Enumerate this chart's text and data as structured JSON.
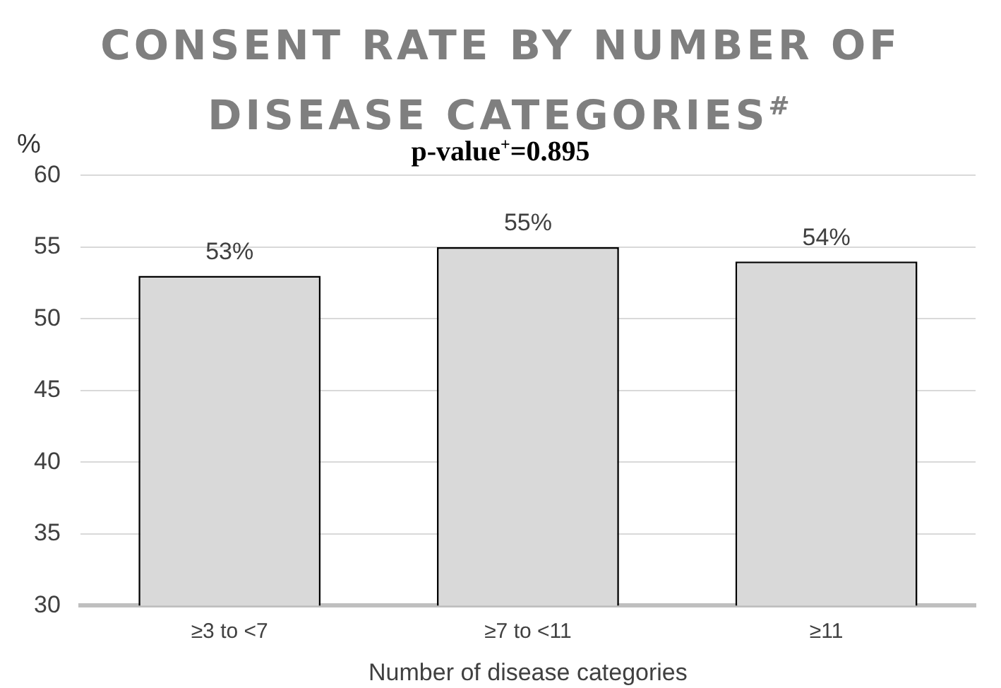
{
  "chart_data": {
    "type": "bar",
    "title": "CONSENT RATE BY NUMBER OF DISEASE CATEGORIES$^{#}$",
    "ylabel": "%",
    "xlabel": "Number of disease categories",
    "annotations": [
      "p-value$^{+}$=0.895"
    ],
    "categories": [
      "≥3 to <7",
      "≥7 to <11",
      "≥11"
    ],
    "values": [
      53,
      55,
      54
    ],
    "value_labels": [
      "53%",
      "55%",
      "54%"
    ],
    "color": "#d9d9d9",
    "ylim": [
      30,
      60
    ],
    "yticks": [
      30,
      35,
      40,
      45,
      50,
      55,
      60
    ],
    "grid": "y",
    "legend": false
  }
}
